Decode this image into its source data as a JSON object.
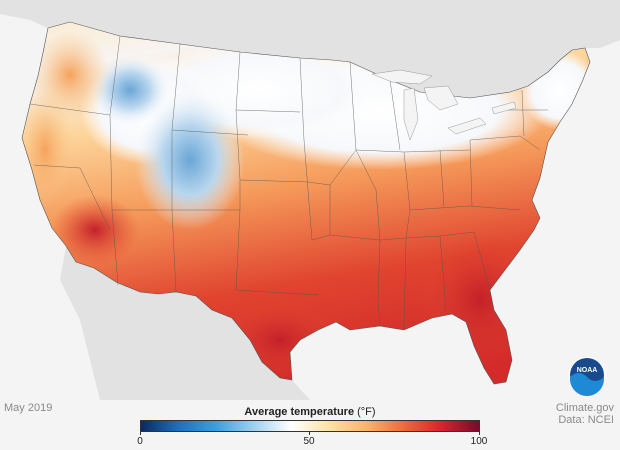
{
  "footer": {
    "date": "May 2019",
    "source_line1": "Climate.gov",
    "source_line2": "Data: NCEI"
  },
  "legend": {
    "title": "Average temperature",
    "unit": "(°F)",
    "min_label": "0",
    "mid_label": "50",
    "max_label": "100",
    "min": 0,
    "max": 100,
    "stops": [
      "#0a2a5c",
      "#1f6fc0",
      "#3aa0e0",
      "#9fd0ef",
      "#ffffff",
      "#ffe2a6",
      "#fbb46a",
      "#ef6a3a",
      "#d3252e",
      "#7a0a2a"
    ]
  },
  "logo": {
    "text": "NOAA",
    "icon": "noaa-logo-icon"
  },
  "colors": {
    "land_other": "#e2e2e2",
    "water": "#f4f4f4",
    "state_lines": "#555555"
  }
}
